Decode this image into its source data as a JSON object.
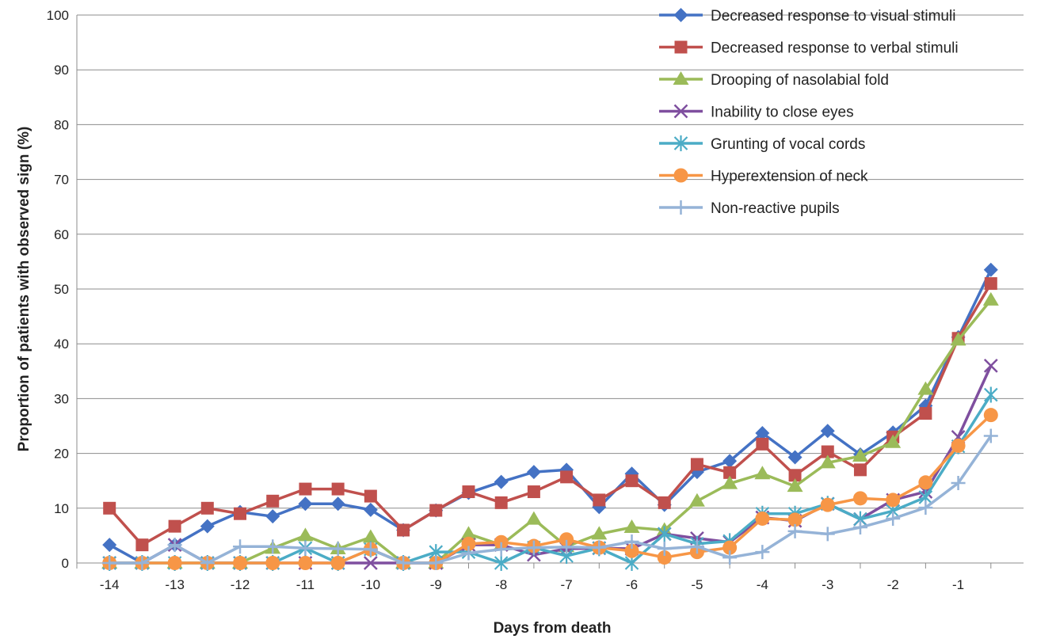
{
  "chart_data": {
    "type": "line",
    "title": "",
    "xlabel": "Days from death",
    "ylabel": "Proportion of patients with observed sign (%)",
    "ylim": [
      0,
      100
    ],
    "yticks": [
      "0",
      "10",
      "20",
      "30",
      "40",
      "50",
      "60",
      "70",
      "80",
      "90",
      "100"
    ],
    "xticks": [
      "-14",
      "-13",
      "-12",
      "-11",
      "-10",
      "-9",
      "-8",
      "-7",
      "-6",
      "-5",
      "-4",
      "-3",
      "-2",
      "-1"
    ],
    "x": [
      -14,
      -13.5,
      -13,
      -12.5,
      -12,
      -11.5,
      -11,
      -10.5,
      -10,
      -9.5,
      -9,
      -8.5,
      -8,
      -7.5,
      -7,
      -6.5,
      -6,
      -5.5,
      -5,
      -4.5,
      -4,
      -3.5,
      -3,
      -2.5,
      -2,
      -1.5,
      -1,
      -0.5
    ],
    "grid": true,
    "legend_position": "top-right",
    "series": [
      {
        "name": "Decreased response to visual stimuli",
        "color": "#4472C4",
        "marker": "diamond",
        "values": [
          3.3,
          0,
          3.3,
          6.7,
          9.3,
          8.5,
          10.8,
          10.8,
          9.7,
          6,
          9.6,
          12.8,
          14.8,
          16.6,
          17,
          10.2,
          16.3,
          10.6,
          16.6,
          18.6,
          23.7,
          19.3,
          24.1,
          19.8,
          23.8,
          28.7,
          41.2,
          53.5
        ]
      },
      {
        "name": "Decreased response to verbal stimuli",
        "color": "#C0504D",
        "marker": "square",
        "values": [
          10,
          3.3,
          6.7,
          10,
          9,
          11.3,
          13.5,
          13.5,
          12.2,
          6,
          9.6,
          13,
          11,
          13,
          15.7,
          11.5,
          15,
          11,
          18,
          16.5,
          21.7,
          16,
          20.3,
          17,
          23,
          27.3,
          41,
          51
        ]
      },
      {
        "name": "Drooping of nasolabial fold",
        "color": "#9BBB59",
        "marker": "triangle",
        "values": [
          0,
          0,
          0,
          0,
          0,
          2.7,
          5,
          2.6,
          4.7,
          0,
          0,
          5.3,
          3.3,
          8,
          3,
          5.3,
          6.5,
          6,
          11.3,
          14.5,
          16.3,
          14,
          18.3,
          19.5,
          22,
          31.7,
          40.7,
          48
        ]
      },
      {
        "name": "Inability to close eyes",
        "color": "#7F4F9F",
        "marker": "x",
        "values": [
          0,
          0,
          3.3,
          0,
          0,
          0,
          0,
          0,
          0,
          0,
          0,
          3.3,
          3.3,
          1.5,
          2.6,
          2.7,
          2.6,
          5.3,
          4.5,
          3.8,
          8.3,
          7.7,
          10.8,
          8,
          11.5,
          13,
          23,
          36
        ]
      },
      {
        "name": "Grunting of vocal cords",
        "color": "#4BACC6",
        "marker": "star",
        "values": [
          0,
          0,
          0,
          0,
          0,
          0,
          2.7,
          0,
          2.5,
          0,
          2,
          2,
          0,
          2.8,
          1.3,
          2.7,
          0,
          5.3,
          3.5,
          4,
          9,
          9,
          10.8,
          8,
          9.5,
          12,
          21.3,
          30.7
        ]
      },
      {
        "name": "Hyperextension of neck",
        "color": "#F79646",
        "marker": "circle",
        "values": [
          0,
          0,
          0,
          0,
          0,
          0,
          0,
          0,
          2.5,
          0,
          0,
          3.5,
          3.8,
          3.1,
          4.3,
          2.8,
          2.2,
          1,
          2,
          2.8,
          8.1,
          7.9,
          10.6,
          11.8,
          11.5,
          14.7,
          21.4,
          27
        ]
      },
      {
        "name": "Non-reactive pupils",
        "color": "#95B3D7",
        "marker": "plus",
        "values": [
          0,
          0,
          3.3,
          0,
          3,
          3,
          2.7,
          2.6,
          2.5,
          0,
          0,
          1.8,
          2.5,
          2.8,
          2.9,
          2.8,
          3.9,
          2.6,
          3,
          1,
          2,
          5.8,
          5.3,
          6.5,
          8.1,
          10.1,
          14.6,
          23.2
        ]
      }
    ]
  }
}
